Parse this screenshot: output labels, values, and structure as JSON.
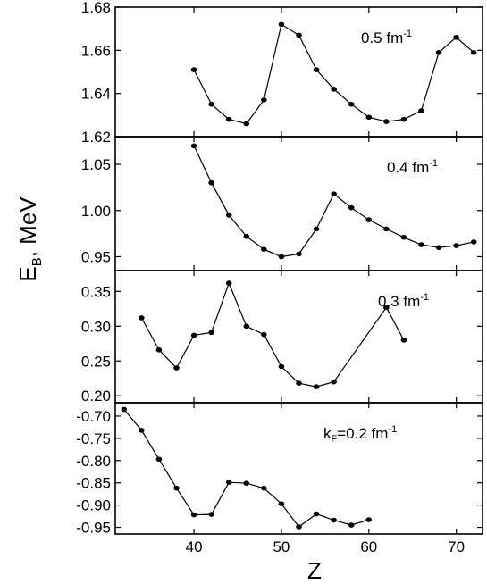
{
  "chart_data": {
    "type": "line",
    "xlabel": "Z",
    "ylabel": "E_B, MeV",
    "xlim": [
      31,
      73
    ],
    "x_ticks": [
      40,
      50,
      60,
      70
    ],
    "shared_x_axis": true,
    "grid": false,
    "panels": [
      {
        "label": "0.5 fm",
        "label_superscript": "-1",
        "ylim": [
          1.62,
          1.68
        ],
        "y_ticks": [
          "1.62",
          "1.64",
          "1.66",
          "1.68"
        ],
        "y_tick_values": [
          1.62,
          1.64,
          1.66,
          1.68
        ],
        "x": [
          40,
          42,
          44,
          46,
          48,
          50,
          52,
          54,
          56,
          58,
          60,
          62,
          64,
          66,
          68,
          70,
          72
        ],
        "y": [
          1.651,
          1.635,
          1.628,
          1.626,
          1.637,
          1.672,
          1.667,
          1.651,
          1.642,
          1.635,
          1.629,
          1.627,
          1.628,
          1.632,
          1.659,
          1.666,
          1.659
        ]
      },
      {
        "label": "0.4 fm",
        "label_superscript": "-1",
        "ylim": [
          0.935,
          1.08
        ],
        "y_ticks": [
          "0.95",
          "1.00",
          "1.05"
        ],
        "y_tick_values": [
          0.95,
          1.0,
          1.05
        ],
        "x": [
          40,
          42,
          44,
          46,
          48,
          50,
          52,
          54,
          56,
          58,
          60,
          62,
          64,
          66,
          68,
          70,
          72
        ],
        "y": [
          1.07,
          1.03,
          0.995,
          0.972,
          0.958,
          0.95,
          0.953,
          0.98,
          1.018,
          1.003,
          0.99,
          0.98,
          0.971,
          0.963,
          0.96,
          0.962,
          0.966
        ]
      },
      {
        "label": "0.3 fm",
        "label_superscript": "-1",
        "ylim": [
          0.19,
          0.38
        ],
        "y_ticks": [
          "0.20",
          "0.25",
          "0.30",
          "0.35"
        ],
        "y_tick_values": [
          0.2,
          0.25,
          0.3,
          0.35
        ],
        "x": [
          34,
          36,
          38,
          40,
          42,
          44,
          46,
          48,
          50,
          52,
          54,
          56,
          62,
          64
        ],
        "y": [
          0.312,
          0.266,
          0.24,
          0.287,
          0.291,
          0.362,
          0.3,
          0.288,
          0.242,
          0.218,
          0.213,
          0.22,
          0.327,
          0.28
        ]
      },
      {
        "label": "k_F=0.2 fm",
        "label_superscript": "-1",
        "ylim": [
          -0.965,
          -0.67
        ],
        "y_ticks": [
          "-0.70",
          "-0.75",
          "-0.80",
          "-0.85",
          "-0.90",
          "-0.95"
        ],
        "y_tick_values": [
          -0.7,
          -0.75,
          -0.8,
          -0.85,
          -0.9,
          -0.95
        ],
        "x": [
          32,
          34,
          36,
          38,
          40,
          42,
          44,
          46,
          48,
          50,
          52,
          54,
          56,
          58,
          60
        ],
        "y": [
          -0.685,
          -0.732,
          -0.797,
          -0.862,
          -0.922,
          -0.921,
          -0.849,
          -0.851,
          -0.862,
          -0.897,
          -0.949,
          -0.92,
          -0.934,
          -0.945,
          -0.933
        ]
      }
    ]
  }
}
